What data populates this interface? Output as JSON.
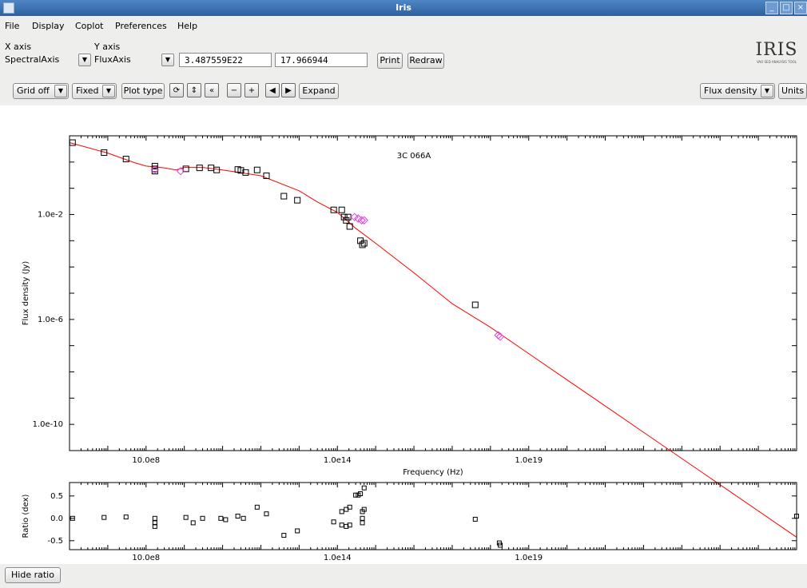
{
  "window": {
    "title": "Iris"
  },
  "menu": [
    "File",
    "Display",
    "Coplot",
    "Preferences",
    "Help"
  ],
  "axis_controls": {
    "x_axis_label": "X axis",
    "x_axis_value": "SpectralAxis",
    "y_axis_label": "Y axis",
    "y_axis_value": "FluxAxis",
    "field1": "3.487559E22",
    "field2": "17.966944",
    "print": "Print",
    "redraw": "Redraw"
  },
  "logo": {
    "text": "IRIS",
    "tagline": "VAO SED ANALYSIS TOOL"
  },
  "toolbar": {
    "grid": "Grid off",
    "scale": "Fixed",
    "plot_type": "Plot type",
    "expand": "Expand",
    "flux": "Flux density",
    "units": "Units"
  },
  "bottom": {
    "hide_ratio": "Hide ratio"
  },
  "colors": {
    "model": "#ff0000",
    "data": "#000000",
    "magenta": "#e040e0"
  },
  "chart_data": {
    "type": "scatter",
    "title": "3C 066A",
    "xlabel": "Frequency (Hz)",
    "ylabel": "Flux density (Jy)",
    "x_log": true,
    "y_log": true,
    "xlim": [
      10000000.0,
      1e+26
    ],
    "ylim": [
      1e-11,
      10
    ],
    "xticks": [
      {
        "v": 1000000000.0,
        "label": "10.0e8"
      },
      {
        "v": 100000000000000.0,
        "label": "1.0e14"
      },
      {
        "v": 1e+19,
        "label": "1.0e19"
      }
    ],
    "yticks": [
      {
        "v": 0.01,
        "label": "1.0e-2"
      },
      {
        "v": 1e-06,
        "label": "1.0e-6"
      },
      {
        "v": 1e-10,
        "label": "1.0e-10"
      }
    ],
    "grid": false,
    "model": [
      [
        10000000.0,
        5.5
      ],
      [
        100000000.0,
        2.2
      ],
      [
        500000000.0,
        0.95
      ],
      [
        1000000000.0,
        0.7
      ],
      [
        3000000000.0,
        0.6
      ],
      [
        6000000000.0,
        0.5
      ],
      [
        10000000000.0,
        0.62
      ],
      [
        30000000000.0,
        0.62
      ],
      [
        100000000000.0,
        0.5
      ],
      [
        1000000000000.0,
        0.3
      ],
      [
        10000000000000.0,
        0.08
      ],
      [
        30000000000000.0,
        0.03
      ],
      [
        100000000000000.0,
        0.012
      ],
      [
        300000000000000.0,
        0.003
      ],
      [
        1000000000000000.0,
        0.0008
      ],
      [
        1e+16,
        6e-05
      ],
      [
        1e+17,
        4e-06
      ],
      [
        1e+18,
        5e-07
      ],
      [
        1e+19,
        5e-08
      ],
      [
        1e+20,
        5e-09
      ],
      [
        1e+21,
        5e-10
      ],
      [
        1e+22,
        5e-11
      ],
      [
        1e+26,
        5e-15
      ]
    ],
    "series": [
      {
        "name": "",
        "color": "#000000",
        "points": [
          [
            12000000.0,
            5.5
          ],
          [
            80000000.0,
            2.3
          ],
          [
            300000000.0,
            1.3
          ],
          [
            1700000000.0,
            0.7
          ],
          [
            1700000000.0,
            0.55
          ],
          [
            1700000000.0,
            0.45
          ],
          [
            11000000000.0,
            0.55
          ],
          [
            25000000000.0,
            0.6
          ],
          [
            50000000000.0,
            0.6
          ],
          [
            70000000000.0,
            0.5
          ],
          [
            250000000000.0,
            0.52
          ],
          [
            300000000000.0,
            0.48
          ],
          [
            400000000000.0,
            0.4
          ],
          [
            800000000000.0,
            0.5
          ],
          [
            1400000000000.0,
            0.3
          ],
          [
            4000000000000.0,
            0.05
          ],
          [
            9000000000000.0,
            0.035
          ],
          [
            80000000000000.0,
            0.015
          ],
          [
            130000000000000.0,
            0.015
          ],
          [
            150000000000000.0,
            0.008
          ],
          [
            170000000000000.0,
            0.006
          ],
          [
            190000000000000.0,
            0.008
          ],
          [
            210000000000000.0,
            0.0035
          ],
          [
            400000000000000.0,
            0.001
          ],
          [
            450000000000000.0,
            0.0007
          ],
          [
            500000000000000.0,
            0.0008
          ],
          [
            4e+17,
            3.6e-06
          ]
        ]
      },
      {
        "name": "",
        "color": "#e040e0",
        "points": [
          [
            1700000000.0,
            0.5
          ],
          [
            8000000000.0,
            0.45
          ],
          [
            280000000000000.0,
            0.008
          ],
          [
            350000000000000.0,
            0.007
          ],
          [
            430000000000000.0,
            0.006
          ],
          [
            500000000000000.0,
            0.006
          ],
          [
            1.6e+18,
            2.5e-07
          ],
          [
            1.8e+18,
            2.2e-07
          ]
        ]
      }
    ],
    "ratio": {
      "ylabel": "Ratio (dex)",
      "ylim": [
        -0.7,
        0.8
      ],
      "yticks": [
        {
          "v": 0.5,
          "label": "0.5"
        },
        {
          "v": 0.0,
          "label": "0.0"
        },
        {
          "v": -0.5,
          "label": "-0.5"
        }
      ],
      "points": [
        [
          12000000.0,
          0.0
        ],
        [
          80000000.0,
          0.02
        ],
        [
          300000000.0,
          0.03
        ],
        [
          1700000000.0,
          0.0
        ],
        [
          1700000000.0,
          -0.1
        ],
        [
          1700000000.0,
          -0.18
        ],
        [
          11000000000.0,
          0.02
        ],
        [
          17000000000.0,
          -0.1
        ],
        [
          30000000000.0,
          0.0
        ],
        [
          90000000000.0,
          0.0
        ],
        [
          120000000000.0,
          -0.03
        ],
        [
          250000000000.0,
          0.05
        ],
        [
          350000000000.0,
          0.0
        ],
        [
          800000000000.0,
          0.25
        ],
        [
          1400000000000.0,
          0.1
        ],
        [
          4000000000000.0,
          -0.38
        ],
        [
          9000000000000.0,
          -0.28
        ],
        [
          80000000000000.0,
          -0.08
        ],
        [
          130000000000000.0,
          -0.15
        ],
        [
          130000000000000.0,
          0.15
        ],
        [
          170000000000000.0,
          -0.18
        ],
        [
          170000000000000.0,
          0.2
        ],
        [
          210000000000000.0,
          -0.15
        ],
        [
          210000000000000.0,
          0.25
        ],
        [
          300000000000000.0,
          0.52
        ],
        [
          350000000000000.0,
          0.52
        ],
        [
          400000000000000.0,
          0.55
        ],
        [
          450000000000000.0,
          0.0
        ],
        [
          450000000000000.0,
          -0.1
        ],
        [
          450000000000000.0,
          0.15
        ],
        [
          500000000000000.0,
          0.2
        ],
        [
          500000000000000.0,
          0.68
        ],
        [
          4e+17,
          -0.02
        ],
        [
          1.7e+18,
          -0.55
        ],
        [
          1.8e+18,
          -0.6
        ],
        [
          1e+26,
          0.05
        ]
      ],
      "xticks": [
        {
          "v": 1000000000.0,
          "label": "10.0e8"
        },
        {
          "v": 100000000000000.0,
          "label": "1.0e14"
        },
        {
          "v": 1e+19,
          "label": "1.0e19"
        }
      ]
    }
  }
}
